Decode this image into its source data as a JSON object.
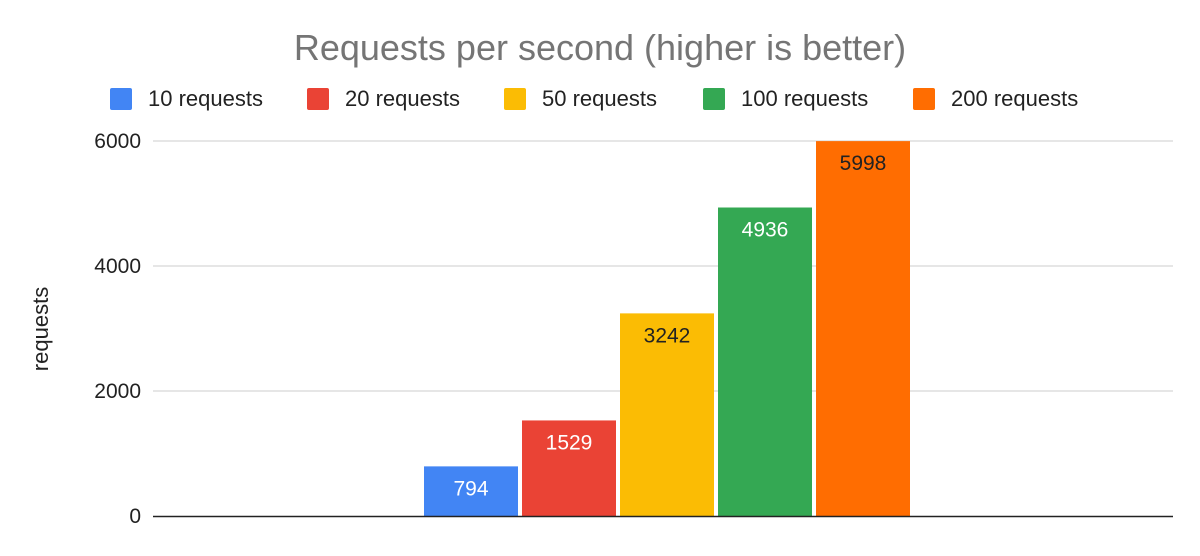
{
  "chart_data": {
    "type": "bar",
    "title": "Requests per second (higher is better)",
    "xlabel": "",
    "ylabel": "requests",
    "ylim": [
      0,
      6000
    ],
    "yticks": [
      0,
      2000,
      4000,
      6000
    ],
    "grid": true,
    "legend_position": "top",
    "categories": [
      ""
    ],
    "series": [
      {
        "name": "10 requests",
        "values": [
          794
        ],
        "color": "#4285f4",
        "label_color": "#ffffff"
      },
      {
        "name": "20 requests",
        "values": [
          1529
        ],
        "color": "#ea4335",
        "label_color": "#ffffff"
      },
      {
        "name": "50 requests",
        "values": [
          3242
        ],
        "color": "#fbbc04",
        "label_color": "#222222"
      },
      {
        "name": "100 requests",
        "values": [
          4936
        ],
        "color": "#34a853",
        "label_color": "#ffffff"
      },
      {
        "name": "200 requests",
        "values": [
          5998
        ],
        "color": "#ff6d01",
        "label_color": "#222222"
      }
    ]
  }
}
